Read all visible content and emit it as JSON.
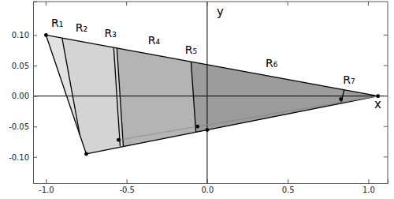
{
  "chart_data": {
    "type": "polygon",
    "xlabel": "x",
    "ylabel": "y",
    "xlim": [
      -1.08,
      1.12
    ],
    "ylim": [
      -0.143,
      0.155
    ],
    "xticks": [
      {
        "value": -1.0,
        "label": "-1.0"
      },
      {
        "value": -0.5,
        "label": "-0.5"
      },
      {
        "value": 0.0,
        "label": "0.0"
      },
      {
        "value": 0.5,
        "label": "0.5"
      },
      {
        "value": 1.0,
        "label": "1.0"
      }
    ],
    "yticks": [
      {
        "value": -0.1,
        "label": "-0.10"
      },
      {
        "value": -0.05,
        "label": "-0.05"
      },
      {
        "value": 0.0,
        "label": "0.00"
      },
      {
        "value": 0.05,
        "label": "0.05"
      },
      {
        "value": 0.1,
        "label": "0.10"
      }
    ],
    "polygons": [
      {
        "color": "#e2e2e2",
        "points": [
          [
            -1.0,
            0.1
          ],
          [
            -0.75,
            -0.095
          ],
          [
            1.06,
            0.0
          ]
        ]
      },
      {
        "color": "#d4d4d4",
        "points": [
          [
            -0.9,
            0.095
          ],
          [
            -0.79,
            -0.064
          ],
          [
            -0.75,
            -0.095
          ],
          [
            1.06,
            0.0
          ]
        ]
      },
      {
        "color": "#b4b4b4",
        "points": [
          [
            -0.56,
            0.0786
          ],
          [
            -0.52,
            -0.0835
          ],
          [
            1.06,
            0.0
          ]
        ]
      },
      {
        "color": "#9c9c9c",
        "points": [
          [
            -0.1,
            0.0563
          ],
          [
            -0.07,
            -0.0593
          ],
          [
            1.06,
            0.0
          ]
        ]
      }
    ],
    "segments": [
      {
        "color": "#000000",
        "points": [
          [
            -1.0,
            0.1
          ],
          [
            -0.75,
            -0.095
          ]
        ]
      },
      {
        "color": "#000000",
        "points": [
          [
            -0.75,
            -0.095
          ],
          [
            1.06,
            0.0
          ]
        ]
      },
      {
        "color": "#000000",
        "points": [
          [
            -1.0,
            0.1
          ],
          [
            1.06,
            0.0
          ]
        ]
      },
      {
        "color": "#000000",
        "points": [
          [
            -0.9,
            0.095
          ],
          [
            -0.79,
            -0.064
          ]
        ]
      },
      {
        "color": "#000000",
        "points": [
          [
            -0.58,
            0.0796
          ],
          [
            -0.54,
            -0.0825
          ]
        ]
      },
      {
        "color": "#000000",
        "points": [
          [
            -0.56,
            0.0786
          ],
          [
            -0.52,
            -0.0835
          ]
        ]
      },
      {
        "color": "#000000",
        "points": [
          [
            -0.1,
            0.0563
          ],
          [
            -0.07,
            -0.0593
          ]
        ]
      },
      {
        "color": "#000000",
        "points": [
          [
            0.85,
            0.0102
          ],
          [
            0.83,
            -0.0121
          ]
        ]
      },
      {
        "color": "#8a8a8a",
        "points": [
          [
            -0.55,
            -0.072
          ],
          [
            1.06,
            0.0
          ]
        ]
      },
      {
        "color": "#8a8a8a",
        "points": [
          [
            -0.06,
            -0.05
          ],
          [
            1.06,
            0.0
          ]
        ]
      }
    ],
    "points": {
      "x": [
        -1.0,
        -0.75,
        -0.55,
        -0.06,
        0.0,
        0.83,
        1.06
      ],
      "y": [
        0.1,
        -0.095,
        -0.072,
        -0.05,
        -0.0556,
        -0.005,
        0.0
      ],
      "color": "#000000"
    },
    "annotations": [
      {
        "text": "R₁",
        "x": -0.93,
        "y": 0.113
      },
      {
        "text": "R₂",
        "x": -0.78,
        "y": 0.106
      },
      {
        "text": "R₃",
        "x": -0.6,
        "y": 0.097
      },
      {
        "text": "R₄",
        "x": -0.33,
        "y": 0.085
      },
      {
        "text": "R₅",
        "x": -0.1,
        "y": 0.07
      },
      {
        "text": "R₆",
        "x": 0.4,
        "y": 0.048
      },
      {
        "text": "R₇",
        "x": 0.88,
        "y": 0.02
      }
    ]
  }
}
